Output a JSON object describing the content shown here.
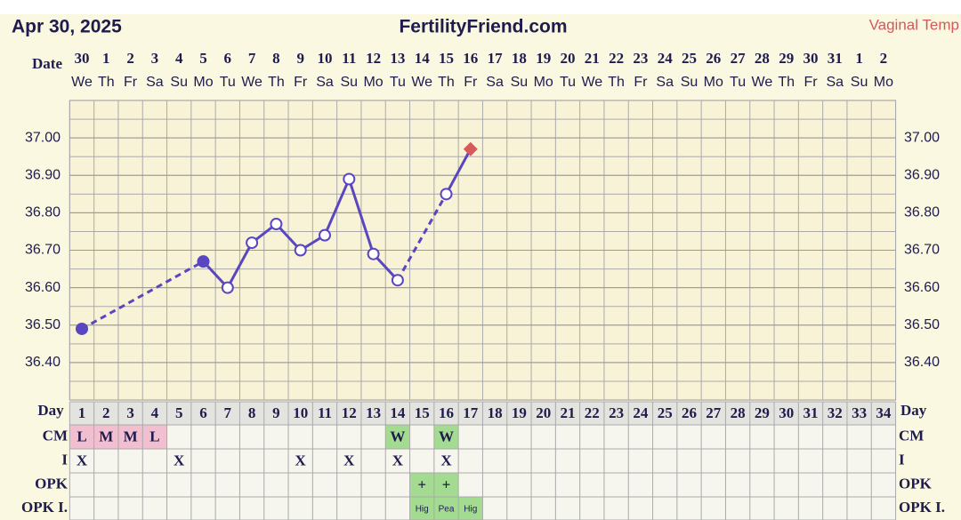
{
  "header": {
    "date": "Apr 30, 2025",
    "site": "FertilityFriend.com",
    "temp_type": "Vaginal Temp"
  },
  "chart_data": {
    "type": "line",
    "x_label": "Date",
    "dates": [
      "30",
      "1",
      "2",
      "3",
      "4",
      "5",
      "6",
      "7",
      "8",
      "9",
      "10",
      "11",
      "12",
      "13",
      "14",
      "15",
      "16",
      "17",
      "18",
      "19",
      "20",
      "21",
      "22",
      "23",
      "24",
      "25",
      "26",
      "27",
      "28",
      "29",
      "30",
      "31",
      "1",
      "2"
    ],
    "weekdays": [
      "We",
      "Th",
      "Fr",
      "Sa",
      "Su",
      "Mo",
      "Tu",
      "We",
      "Th",
      "Fr",
      "Sa",
      "Su",
      "Mo",
      "Tu",
      "We",
      "Th",
      "Fr",
      "Sa",
      "Su",
      "Mo",
      "Tu",
      "We",
      "Th",
      "Fr",
      "Sa",
      "Su",
      "Mo",
      "Tu",
      "We",
      "Th",
      "Fr",
      "Sa",
      "Su",
      "Mo"
    ],
    "day_label": "Day",
    "days": [
      1,
      2,
      3,
      4,
      5,
      6,
      7,
      8,
      9,
      10,
      11,
      12,
      13,
      14,
      15,
      16,
      17,
      18,
      19,
      20,
      21,
      22,
      23,
      24,
      25,
      26,
      27,
      28,
      29,
      30,
      31,
      32,
      33,
      34
    ],
    "ylim": [
      36.3,
      37.1
    ],
    "yticks": [
      {
        "value": 36.4,
        "label": "36.40"
      },
      {
        "value": 36.5,
        "label": "36.50"
      },
      {
        "value": 36.6,
        "label": "36.60"
      },
      {
        "value": 36.7,
        "label": "36.70"
      },
      {
        "value": 36.8,
        "label": "36.80"
      },
      {
        "value": 36.9,
        "label": "36.90"
      },
      {
        "value": 37.0,
        "label": "37.00"
      }
    ],
    "grid": true,
    "series": [
      {
        "color": "#5a46c0",
        "highlight_color": "#d65a5a",
        "values": [
          36.49,
          null,
          null,
          null,
          null,
          36.67,
          36.6,
          36.72,
          36.77,
          36.7,
          36.74,
          36.89,
          36.69,
          36.62,
          null,
          36.85,
          36.97,
          null,
          null,
          null,
          null,
          null,
          null,
          null,
          null,
          null,
          null,
          null,
          null,
          null,
          null,
          null,
          null,
          null
        ],
        "markers": [
          "filled",
          null,
          null,
          null,
          null,
          "filled",
          "open",
          "open",
          "open",
          "open",
          "open",
          "open",
          "open",
          "open",
          null,
          "open",
          "diamond",
          null,
          null,
          null,
          null,
          null,
          null,
          null,
          null,
          null,
          null,
          null,
          null,
          null,
          null,
          null,
          null,
          null
        ]
      }
    ],
    "rows": [
      {
        "label": "CM",
        "cells": [
          {
            "day": 1,
            "text": "L",
            "color": "#f2bfd0"
          },
          {
            "day": 2,
            "text": "M",
            "color": "#f2bfd0"
          },
          {
            "day": 3,
            "text": "M",
            "color": "#f2bfd0"
          },
          {
            "day": 4,
            "text": "L",
            "color": "#f2bfd0"
          },
          {
            "day": 14,
            "text": "W",
            "color": "#a3dc90"
          },
          {
            "day": 16,
            "text": "W",
            "color": "#a3dc90"
          }
        ]
      },
      {
        "label": "I",
        "cells": [
          {
            "day": 1,
            "text": "X"
          },
          {
            "day": 5,
            "text": "X"
          },
          {
            "day": 10,
            "text": "X"
          },
          {
            "day": 12,
            "text": "X"
          },
          {
            "day": 14,
            "text": "X"
          },
          {
            "day": 16,
            "text": "X"
          }
        ]
      },
      {
        "label": "OPK",
        "cells": [
          {
            "day": 15,
            "text": "+",
            "color": "#a3dc90"
          },
          {
            "day": 16,
            "text": "+",
            "color": "#a3dc90"
          }
        ]
      },
      {
        "label": "OPK I.",
        "small": true,
        "cells": [
          {
            "day": 15,
            "text": "Hig",
            "color": "#a3dc90"
          },
          {
            "day": 16,
            "text": "Pea",
            "color": "#a3dc90"
          },
          {
            "day": 17,
            "text": "Hig",
            "color": "#a3dc90"
          }
        ]
      }
    ]
  }
}
